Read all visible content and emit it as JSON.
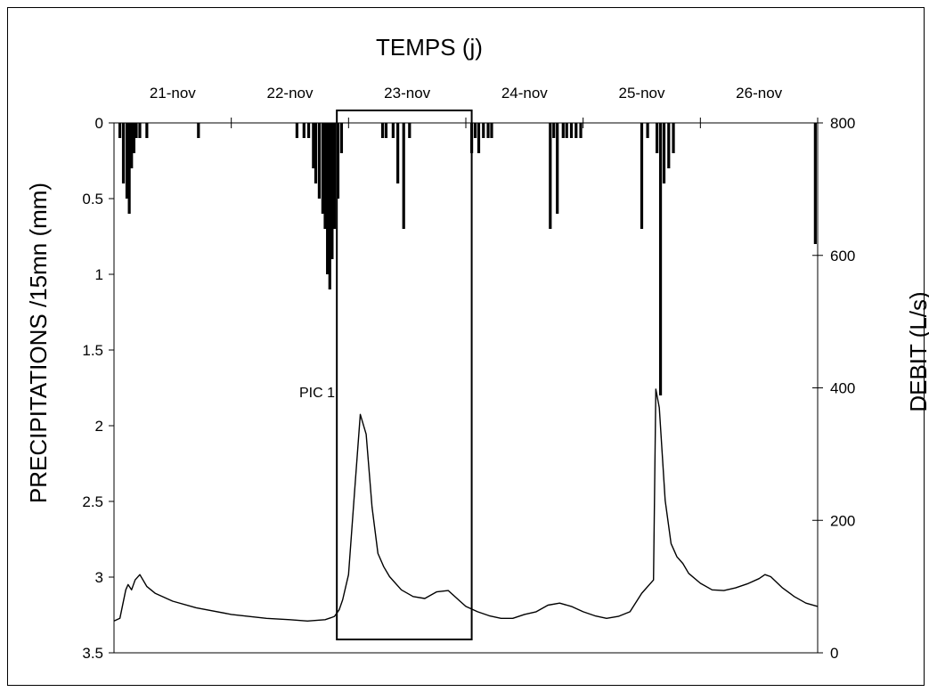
{
  "chart_data": {
    "type": "hydrograph",
    "title": "",
    "xlabel": "TEMPS (j)",
    "ylabel_left": "PRECIPITATIONS /15mn (mm)",
    "ylabel_right": "DEBIT (L/s)",
    "x_tick_labels": [
      "21-nov",
      "22-nov",
      "23-nov",
      "24-nov",
      "25-nov",
      "26-nov"
    ],
    "y_left_ticks": [
      "0",
      "0.5",
      "1",
      "1.5",
      "2",
      "2.5",
      "3",
      "3.5"
    ],
    "y_left_range": [
      0,
      3.5
    ],
    "y_right_ticks": [
      "0",
      "200",
      "400",
      "600",
      "800"
    ],
    "y_right_range": [
      0,
      800
    ],
    "x_range_days": [
      21.0,
      27.0
    ],
    "annotation": "PIC 1",
    "annotation_day": 23.2,
    "annotation_value": 370,
    "highlight_box": {
      "start_day": 22.9,
      "end_day": 24.05
    },
    "rainfall_series": {
      "name": "",
      "day": [
        21.05,
        21.08,
        21.11,
        21.13,
        21.15,
        21.17,
        21.19,
        21.22,
        21.28,
        21.72,
        22.56,
        22.62,
        22.66,
        22.7,
        22.72,
        22.75,
        22.78,
        22.8,
        22.82,
        22.84,
        22.86,
        22.88,
        22.91,
        22.94,
        23.29,
        23.32,
        23.38,
        23.42,
        23.47,
        23.52,
        24.05,
        24.08,
        24.11,
        24.15,
        24.19,
        24.22,
        24.72,
        24.75,
        24.78,
        24.83,
        24.86,
        24.9,
        24.94,
        24.98,
        25.5,
        25.55,
        25.63,
        25.66,
        25.69,
        25.73,
        25.77,
        26.98
      ],
      "value": [
        0.1,
        0.4,
        0.5,
        0.6,
        0.3,
        0.2,
        0.1,
        0.1,
        0.1,
        0.1,
        0.1,
        0.1,
        0.1,
        0.3,
        0.4,
        0.5,
        0.6,
        0.7,
        1.0,
        1.1,
        0.9,
        0.7,
        0.5,
        0.2,
        0.1,
        0.1,
        0.1,
        0.4,
        0.7,
        0.1,
        0.2,
        0.1,
        0.2,
        0.1,
        0.1,
        0.1,
        0.7,
        0.1,
        0.6,
        0.1,
        0.1,
        0.1,
        0.1,
        0.1,
        0.7,
        0.1,
        0.2,
        1.8,
        0.4,
        0.3,
        0.2,
        0.8
      ]
    },
    "discharge_series": {
      "name": "",
      "day": [
        21.0,
        21.05,
        21.1,
        21.12,
        21.15,
        21.18,
        21.22,
        21.28,
        21.35,
        21.5,
        21.7,
        22.0,
        22.3,
        22.5,
        22.65,
        22.8,
        22.85,
        22.88,
        22.92,
        22.95,
        23.0,
        23.05,
        23.1,
        23.15,
        23.2,
        23.25,
        23.3,
        23.35,
        23.45,
        23.55,
        23.65,
        23.75,
        23.85,
        23.9,
        23.95,
        24.0,
        24.1,
        24.2,
        24.3,
        24.4,
        24.5,
        24.6,
        24.7,
        24.8,
        24.9,
        25.0,
        25.1,
        25.2,
        25.3,
        25.4,
        25.5,
        25.6,
        25.62,
        25.65,
        25.7,
        25.75,
        25.8,
        25.85,
        25.9,
        26.0,
        26.1,
        26.2,
        26.3,
        26.4,
        26.5,
        26.55,
        26.6,
        26.7,
        26.8,
        26.9,
        27.0
      ],
      "value": [
        48,
        52,
        95,
        103,
        95,
        110,
        118,
        100,
        90,
        78,
        68,
        58,
        52,
        50,
        48,
        50,
        53,
        55,
        65,
        80,
        118,
        240,
        360,
        330,
        220,
        150,
        130,
        115,
        95,
        85,
        82,
        92,
        94,
        86,
        78,
        70,
        62,
        56,
        52,
        52,
        58,
        62,
        72,
        75,
        70,
        62,
        56,
        52,
        55,
        62,
        90,
        110,
        398,
        370,
        230,
        165,
        145,
        135,
        120,
        105,
        95,
        94,
        98,
        104,
        112,
        118,
        115,
        98,
        85,
        75,
        70
      ]
    }
  }
}
